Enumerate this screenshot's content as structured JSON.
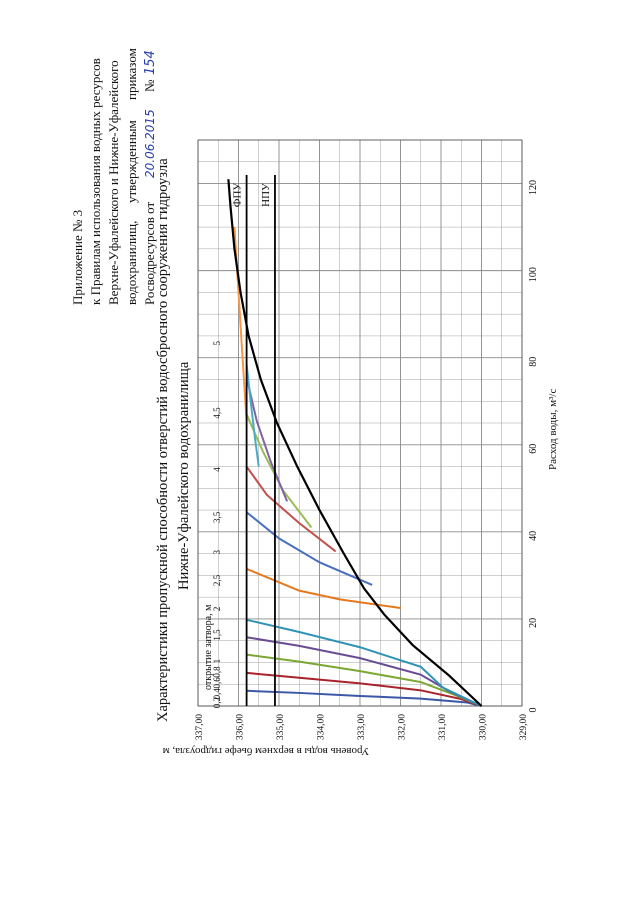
{
  "header": {
    "line1": "Приложение № 3",
    "line2": "к Правилам использования водных ресурсов",
    "line3": "Верхне-Уфалейского и Нижне-Уфалейского",
    "line4a": "водохранилищ,",
    "line4b": "утвержденным",
    "line4c": "приказом",
    "line5a": "Росводресурсов от",
    "date_handwritten": "20.06.2015",
    "number_label": "№",
    "number_handwritten": "154"
  },
  "colors": {
    "series": [
      "#3b57a6",
      "#a8232b",
      "#7ba732",
      "#6a4c93",
      "#2f93b3",
      "#e6781e",
      "#4a6fc0",
      "#c0504d",
      "#9bbb59",
      "#8064a2",
      "#4bacc6",
      "#f79646"
    ],
    "envelope": "#000000",
    "grid": "#8a8a8a"
  },
  "chart_data": {
    "type": "line",
    "title": "Характеристики пропускной способности отверстий водосбросного сооружения гидроузла",
    "subtitle": "Нижне-Уфалейского водохранилища",
    "xlabel": "Расход воды, м³/с",
    "ylabel": "Уровень воды в верхнем бьефе гидроузла, м",
    "xlim": [
      0,
      130
    ],
    "ylim": [
      329,
      337
    ],
    "x_ticks": [
      "0",
      "20",
      "40",
      "60",
      "80",
      "100",
      "120"
    ],
    "y_ticks": [
      "329,00",
      "330,00",
      "331,00",
      "332,00",
      "333,00",
      "334,00",
      "335,00",
      "336,00",
      "337,00"
    ],
    "grid": true,
    "gate_header": "открытие затвора, м",
    "series": [
      {
        "name": "0,2",
        "points": [
          [
            0,
            330.0
          ],
          [
            0.8,
            330.35
          ],
          [
            1.7,
            331.5
          ],
          [
            2.3,
            333.0
          ],
          [
            3.0,
            334.5
          ],
          [
            3.5,
            335.8
          ]
        ]
      },
      {
        "name": "0,4",
        "points": [
          [
            0,
            330.0
          ],
          [
            1.6,
            330.5
          ],
          [
            3.6,
            331.5
          ],
          [
            5.2,
            333.0
          ],
          [
            6.5,
            334.5
          ],
          [
            7.6,
            335.8
          ]
        ]
      },
      {
        "name": "0,6",
        "points": [
          [
            0,
            330.0
          ],
          [
            2.5,
            330.65
          ],
          [
            5.5,
            331.5
          ],
          [
            8.0,
            333.0
          ],
          [
            10.2,
            334.5
          ],
          [
            11.8,
            335.8
          ]
        ]
      },
      {
        "name": "0,8",
        "points": [
          [
            0,
            330.0
          ],
          [
            3.4,
            330.8
          ],
          [
            7.2,
            331.5
          ],
          [
            11.0,
            333.0
          ],
          [
            13.8,
            334.5
          ],
          [
            15.8,
            335.8
          ]
        ]
      },
      {
        "name": "1",
        "points": [
          [
            0,
            330.0
          ],
          [
            4.2,
            330.95
          ],
          [
            9.0,
            331.5
          ],
          [
            13.5,
            333.0
          ],
          [
            17.0,
            334.5
          ],
          [
            19.8,
            335.8
          ]
        ]
      },
      {
        "name": "1,5",
        "points": [
          [
            22.5,
            332.0
          ],
          [
            24.5,
            333.5
          ],
          [
            26.5,
            334.5
          ],
          [
            31.5,
            335.8
          ]
        ]
      },
      {
        "name": "2",
        "points": [
          [
            27.8,
            332.7
          ],
          [
            33.0,
            334.0
          ],
          [
            38.5,
            335.0
          ],
          [
            44.5,
            335.8
          ]
        ]
      },
      {
        "name": "2,5",
        "points": [
          [
            35.5,
            333.6
          ],
          [
            42.0,
            334.5
          ],
          [
            48.5,
            335.3
          ],
          [
            55.0,
            335.8
          ]
        ]
      },
      {
        "name": "3",
        "points": [
          [
            41.0,
            334.2
          ],
          [
            49.5,
            334.9
          ],
          [
            58.5,
            335.4
          ],
          [
            67.0,
            335.8
          ]
        ]
      },
      {
        "name": "3,5",
        "points": [
          [
            47.0,
            334.8
          ],
          [
            56.0,
            335.2
          ],
          [
            65.5,
            335.55
          ],
          [
            75.5,
            335.8
          ]
        ]
      },
      {
        "name": "4",
        "points": [
          [
            55.0,
            335.5
          ],
          [
            62.0,
            335.6
          ],
          [
            70.0,
            335.7
          ],
          [
            78.5,
            335.8
          ]
        ]
      },
      {
        "name": "4,5",
        "points": [
          [
            65.5,
            335.8
          ],
          [
            80.0,
            335.9
          ],
          [
            95.0,
            336.0
          ],
          [
            110.0,
            336.1
          ]
        ]
      }
    ],
    "envelope": {
      "name": "",
      "points": [
        [
          0,
          330.0
        ],
        [
          7.0,
          330.8
        ],
        [
          14.0,
          331.7
        ],
        [
          21.0,
          332.4
        ],
        [
          27.0,
          332.9
        ],
        [
          35.0,
          333.4
        ],
        [
          45.0,
          334.0
        ],
        [
          55.0,
          334.55
        ],
        [
          65.0,
          335.05
        ],
        [
          75.0,
          335.45
        ],
        [
          85.0,
          335.75
        ],
        [
          95.0,
          335.95
        ],
        [
          105.0,
          336.1
        ],
        [
          115.0,
          336.2
        ],
        [
          121.0,
          336.25
        ]
      ]
    },
    "levels": [
      {
        "name": "ФПУ",
        "y": 335.8
      },
      {
        "name": "НПУ",
        "y": 335.1
      }
    ],
    "top_labels": [
      "0,2",
      "0,4",
      "0,6",
      "0,8",
      "1",
      "1,5",
      "2",
      "2,5",
      "3",
      "3,5",
      "4",
      "4,5",
      "5"
    ],
    "top_label_x": [
      1.5,
      3.5,
      6.0,
      8.5,
      11.0,
      17.0,
      23.0,
      29.5,
      36.0,
      44.0,
      55.0,
      68.0,
      84.0
    ]
  }
}
